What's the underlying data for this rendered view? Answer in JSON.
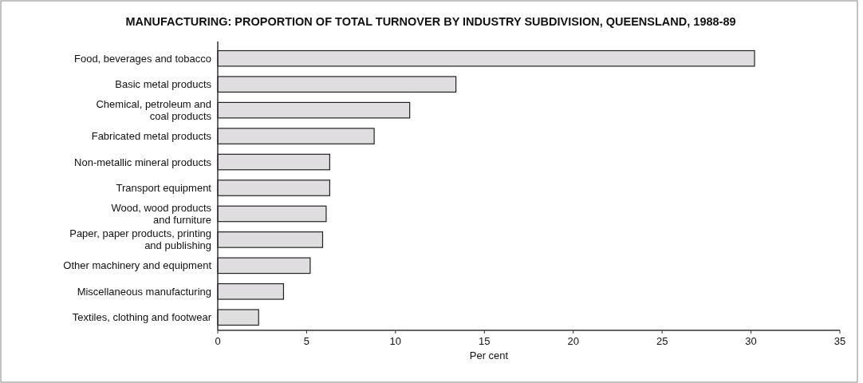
{
  "chart_data": {
    "type": "bar",
    "orientation": "horizontal",
    "title": "MANUFACTURING:  PROPORTION OF TOTAL TURNOVER BY INDUSTRY SUBDIVISION, QUEENSLAND, 1988-89",
    "categories": [
      "Food, beverages and tobacco",
      "Basic metal products",
      "Chemical, petroleum and\ncoal products",
      "Fabricated metal products",
      "Non-metallic mineral products",
      "Transport equipment",
      "Wood, wood products\nand furniture",
      "Paper, paper products, printing\nand publishing",
      "Other machinery and equipment",
      "Miscellaneous manufacturing",
      "Textiles, clothing and footwear"
    ],
    "values": [
      30.2,
      13.4,
      10.8,
      8.8,
      6.3,
      6.3,
      6.1,
      5.9,
      5.2,
      3.7,
      2.3
    ],
    "color": "#e0dde0",
    "xlabel": "Per cent",
    "xlim": [
      0,
      35
    ],
    "xticks": [
      0,
      5,
      10,
      15,
      20,
      25,
      30,
      35
    ],
    "grid": false
  }
}
